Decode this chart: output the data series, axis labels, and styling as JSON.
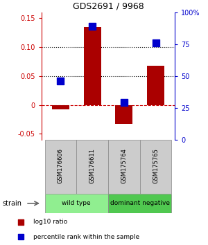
{
  "title": "GDS2691 / 9968",
  "categories": [
    "GSM176606",
    "GSM176611",
    "GSM175764",
    "GSM175765"
  ],
  "log10_ratio": [
    -0.008,
    0.134,
    -0.033,
    0.068
  ],
  "percentile_rank_pct": [
    46,
    89,
    29,
    76
  ],
  "ylim_left": [
    -0.06,
    0.16
  ],
  "ylim_right": [
    0,
    100
  ],
  "yticks_left": [
    -0.05,
    0.0,
    0.05,
    0.1,
    0.15
  ],
  "yticks_right": [
    0,
    25,
    50,
    75,
    100
  ],
  "ytick_labels_left": [
    "-0.05",
    "0",
    "0.05",
    "0.10",
    "0.15"
  ],
  "ytick_labels_right": [
    "0",
    "25",
    "50",
    "75",
    "100%"
  ],
  "hlines_dotted": [
    0.05,
    0.1
  ],
  "hline_dashed": 0.0,
  "bar_color": "#aa0000",
  "dot_color": "#0000cc",
  "bar_width": 0.55,
  "dot_size": 50,
  "groups": [
    {
      "label": "wild type",
      "indices": [
        0,
        1
      ],
      "color": "#90ee90"
    },
    {
      "label": "dominant negative",
      "indices": [
        2,
        3
      ],
      "color": "#50c850"
    }
  ],
  "strain_label": "strain",
  "legend_bar_label": "log10 ratio",
  "legend_dot_label": "percentile rank within the sample",
  "left_tick_color": "#cc0000",
  "right_tick_color": "#0000cc",
  "fig_bg": "#ffffff",
  "gsm_cell_color": "#cccccc"
}
